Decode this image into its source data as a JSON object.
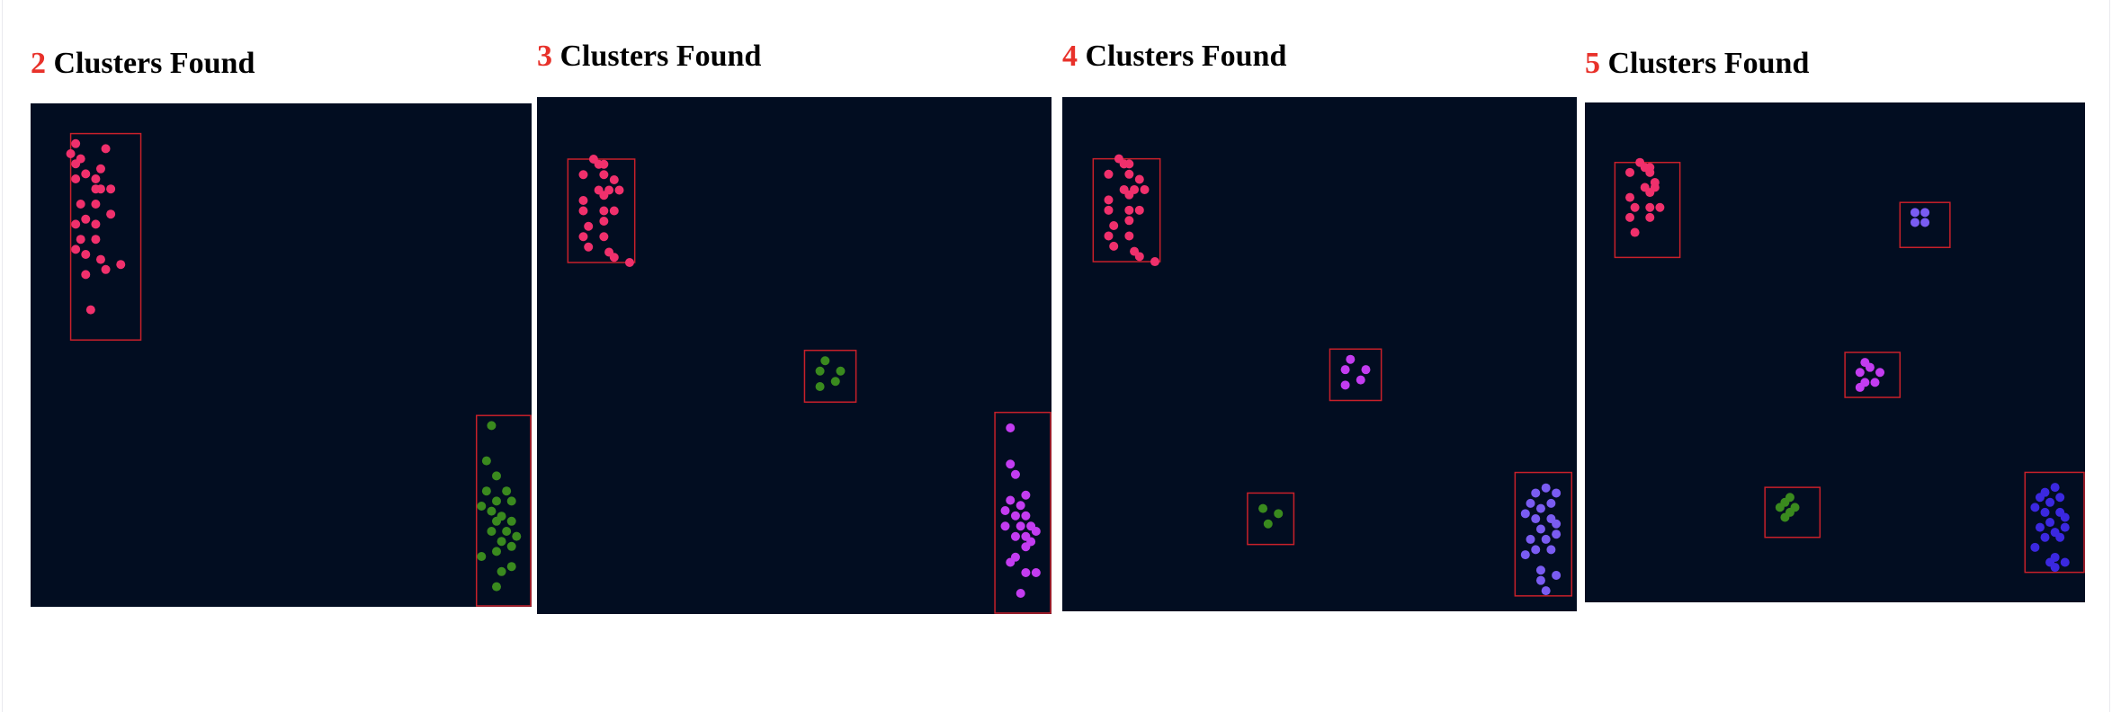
{
  "colors": {
    "background": "#020d21",
    "box": "#c8202a",
    "count_text": "#e8312a"
  },
  "chart_data": [
    {
      "type": "scatter",
      "count": "2",
      "title_suffix": "Clusters Found",
      "xlim": [
        0,
        1
      ],
      "ylim": [
        0,
        1
      ],
      "clusters": [
        {
          "color": "#f0306c",
          "box": [
            0.08,
            0.53,
            0.22,
            0.94
          ],
          "points": [
            [
              0.09,
              0.92
            ],
            [
              0.08,
              0.9
            ],
            [
              0.1,
              0.89
            ],
            [
              0.09,
              0.88
            ],
            [
              0.15,
              0.91
            ],
            [
              0.11,
              0.86
            ],
            [
              0.14,
              0.87
            ],
            [
              0.13,
              0.85
            ],
            [
              0.16,
              0.83
            ],
            [
              0.09,
              0.85
            ],
            [
              0.13,
              0.83
            ],
            [
              0.14,
              0.83
            ],
            [
              0.13,
              0.8
            ],
            [
              0.1,
              0.8
            ],
            [
              0.16,
              0.78
            ],
            [
              0.11,
              0.77
            ],
            [
              0.13,
              0.76
            ],
            [
              0.09,
              0.76
            ],
            [
              0.1,
              0.73
            ],
            [
              0.13,
              0.73
            ],
            [
              0.09,
              0.71
            ],
            [
              0.14,
              0.69
            ],
            [
              0.11,
              0.7
            ],
            [
              0.18,
              0.68
            ],
            [
              0.15,
              0.67
            ],
            [
              0.11,
              0.66
            ],
            [
              0.12,
              0.59
            ]
          ]
        },
        {
          "color": "#3a8a1e",
          "box": [
            0.89,
            0.0,
            1.0,
            0.38
          ],
          "points": [
            [
              0.92,
              0.36
            ],
            [
              0.91,
              0.29
            ],
            [
              0.93,
              0.26
            ],
            [
              0.95,
              0.23
            ],
            [
              0.91,
              0.23
            ],
            [
              0.93,
              0.21
            ],
            [
              0.96,
              0.21
            ],
            [
              0.9,
              0.2
            ],
            [
              0.92,
              0.19
            ],
            [
              0.94,
              0.18
            ],
            [
              0.96,
              0.17
            ],
            [
              0.93,
              0.17
            ],
            [
              0.95,
              0.15
            ],
            [
              0.97,
              0.14
            ],
            [
              0.92,
              0.15
            ],
            [
              0.94,
              0.13
            ],
            [
              0.96,
              0.12
            ],
            [
              0.9,
              0.1
            ],
            [
              0.93,
              0.11
            ],
            [
              0.96,
              0.08
            ],
            [
              0.94,
              0.07
            ],
            [
              0.93,
              0.04
            ]
          ]
        }
      ]
    },
    {
      "type": "scatter",
      "count": "3",
      "title_suffix": "Clusters Found",
      "xlim": [
        0,
        1
      ],
      "ylim": [
        0,
        1
      ],
      "clusters": [
        {
          "color": "#f0306c",
          "box": [
            0.06,
            0.68,
            0.19,
            0.88
          ],
          "points": [
            [
              0.11,
              0.88
            ],
            [
              0.12,
              0.87
            ],
            [
              0.13,
              0.87
            ],
            [
              0.09,
              0.85
            ],
            [
              0.13,
              0.85
            ],
            [
              0.15,
              0.84
            ],
            [
              0.12,
              0.82
            ],
            [
              0.14,
              0.82
            ],
            [
              0.16,
              0.82
            ],
            [
              0.13,
              0.81
            ],
            [
              0.09,
              0.8
            ],
            [
              0.09,
              0.78
            ],
            [
              0.13,
              0.78
            ],
            [
              0.15,
              0.78
            ],
            [
              0.13,
              0.76
            ],
            [
              0.1,
              0.75
            ],
            [
              0.09,
              0.73
            ],
            [
              0.13,
              0.73
            ],
            [
              0.1,
              0.71
            ],
            [
              0.14,
              0.7
            ],
            [
              0.15,
              0.69
            ],
            [
              0.18,
              0.68
            ]
          ]
        },
        {
          "color": "#3a8a1e",
          "box": [
            0.52,
            0.41,
            0.62,
            0.51
          ],
          "points": [
            [
              0.56,
              0.49
            ],
            [
              0.59,
              0.47
            ],
            [
              0.55,
              0.47
            ],
            [
              0.58,
              0.45
            ],
            [
              0.55,
              0.44
            ]
          ]
        },
        {
          "color": "#c33cf0",
          "box": [
            0.89,
            0.0,
            1.0,
            0.39
          ],
          "points": [
            [
              0.92,
              0.36
            ],
            [
              0.92,
              0.29
            ],
            [
              0.93,
              0.27
            ],
            [
              0.95,
              0.23
            ],
            [
              0.92,
              0.22
            ],
            [
              0.94,
              0.21
            ],
            [
              0.91,
              0.2
            ],
            [
              0.93,
              0.19
            ],
            [
              0.95,
              0.19
            ],
            [
              0.94,
              0.17
            ],
            [
              0.96,
              0.17
            ],
            [
              0.91,
              0.17
            ],
            [
              0.95,
              0.15
            ],
            [
              0.97,
              0.16
            ],
            [
              0.93,
              0.15
            ],
            [
              0.95,
              0.13
            ],
            [
              0.96,
              0.14
            ],
            [
              0.93,
              0.11
            ],
            [
              0.92,
              0.1
            ],
            [
              0.95,
              0.08
            ],
            [
              0.97,
              0.08
            ],
            [
              0.94,
              0.04
            ]
          ]
        }
      ]
    },
    {
      "type": "scatter",
      "count": "4",
      "title_suffix": "Clusters Found",
      "xlim": [
        0,
        1
      ],
      "ylim": [
        0,
        1
      ],
      "clusters": [
        {
          "color": "#f0306c",
          "box": [
            0.06,
            0.68,
            0.19,
            0.88
          ],
          "points": [
            [
              0.11,
              0.88
            ],
            [
              0.12,
              0.87
            ],
            [
              0.13,
              0.87
            ],
            [
              0.09,
              0.85
            ],
            [
              0.13,
              0.85
            ],
            [
              0.15,
              0.84
            ],
            [
              0.12,
              0.82
            ],
            [
              0.14,
              0.82
            ],
            [
              0.16,
              0.82
            ],
            [
              0.13,
              0.81
            ],
            [
              0.09,
              0.8
            ],
            [
              0.09,
              0.78
            ],
            [
              0.13,
              0.78
            ],
            [
              0.15,
              0.78
            ],
            [
              0.13,
              0.76
            ],
            [
              0.1,
              0.75
            ],
            [
              0.09,
              0.73
            ],
            [
              0.13,
              0.73
            ],
            [
              0.1,
              0.71
            ],
            [
              0.14,
              0.7
            ],
            [
              0.15,
              0.69
            ],
            [
              0.18,
              0.68
            ]
          ]
        },
        {
          "color": "#c33cf0",
          "box": [
            0.52,
            0.41,
            0.62,
            0.51
          ],
          "points": [
            [
              0.56,
              0.49
            ],
            [
              0.59,
              0.47
            ],
            [
              0.55,
              0.47
            ],
            [
              0.58,
              0.45
            ],
            [
              0.55,
              0.44
            ]
          ]
        },
        {
          "color": "#3a8a1e",
          "box": [
            0.36,
            0.13,
            0.45,
            0.23
          ],
          "points": [
            [
              0.39,
              0.2
            ],
            [
              0.42,
              0.19
            ],
            [
              0.4,
              0.17
            ]
          ]
        },
        {
          "color": "#7a5cf2",
          "box": [
            0.88,
            0.03,
            0.99,
            0.27
          ],
          "points": [
            [
              0.92,
              0.23
            ],
            [
              0.94,
              0.24
            ],
            [
              0.96,
              0.23
            ],
            [
              0.91,
              0.21
            ],
            [
              0.93,
              0.2
            ],
            [
              0.95,
              0.21
            ],
            [
              0.9,
              0.19
            ],
            [
              0.92,
              0.18
            ],
            [
              0.95,
              0.18
            ],
            [
              0.96,
              0.17
            ],
            [
              0.93,
              0.16
            ],
            [
              0.96,
              0.15
            ],
            [
              0.94,
              0.14
            ],
            [
              0.91,
              0.14
            ],
            [
              0.92,
              0.12
            ],
            [
              0.95,
              0.12
            ],
            [
              0.9,
              0.11
            ],
            [
              0.93,
              0.08
            ],
            [
              0.96,
              0.07
            ],
            [
              0.93,
              0.06
            ],
            [
              0.94,
              0.04
            ]
          ]
        }
      ]
    },
    {
      "type": "scatter",
      "count": "5",
      "title_suffix": "Clusters Found",
      "xlim": [
        0,
        1
      ],
      "ylim": [
        0,
        1
      ],
      "clusters": [
        {
          "color": "#f0306c",
          "box": [
            0.06,
            0.69,
            0.19,
            0.88
          ],
          "points": [
            [
              0.11,
              0.88
            ],
            [
              0.12,
              0.87
            ],
            [
              0.13,
              0.87
            ],
            [
              0.09,
              0.86
            ],
            [
              0.13,
              0.86
            ],
            [
              0.14,
              0.84
            ],
            [
              0.12,
              0.83
            ],
            [
              0.14,
              0.83
            ],
            [
              0.13,
              0.82
            ],
            [
              0.09,
              0.81
            ],
            [
              0.1,
              0.79
            ],
            [
              0.13,
              0.79
            ],
            [
              0.15,
              0.79
            ],
            [
              0.13,
              0.77
            ],
            [
              0.09,
              0.77
            ],
            [
              0.1,
              0.74
            ]
          ]
        },
        {
          "color": "#7a5cf2",
          "box": [
            0.63,
            0.71,
            0.73,
            0.8
          ],
          "points": [
            [
              0.66,
              0.78
            ],
            [
              0.68,
              0.78
            ],
            [
              0.66,
              0.76
            ],
            [
              0.68,
              0.76
            ]
          ]
        },
        {
          "color": "#c33cf0",
          "box": [
            0.52,
            0.41,
            0.63,
            0.5
          ],
          "points": [
            [
              0.56,
              0.48
            ],
            [
              0.57,
              0.47
            ],
            [
              0.59,
              0.46
            ],
            [
              0.55,
              0.46
            ],
            [
              0.56,
              0.44
            ],
            [
              0.58,
              0.44
            ],
            [
              0.55,
              0.43
            ]
          ]
        },
        {
          "color": "#3a8a1e",
          "box": [
            0.36,
            0.13,
            0.47,
            0.23
          ],
          "points": [
            [
              0.4,
              0.2
            ],
            [
              0.41,
              0.21
            ],
            [
              0.39,
              0.19
            ],
            [
              0.42,
              0.19
            ],
            [
              0.41,
              0.18
            ],
            [
              0.4,
              0.17
            ]
          ]
        },
        {
          "color": "#3b28e0",
          "box": [
            0.88,
            0.06,
            1.0,
            0.26
          ],
          "points": [
            [
              0.92,
              0.22
            ],
            [
              0.94,
              0.23
            ],
            [
              0.91,
              0.21
            ],
            [
              0.93,
              0.2
            ],
            [
              0.95,
              0.21
            ],
            [
              0.9,
              0.19
            ],
            [
              0.92,
              0.18
            ],
            [
              0.95,
              0.18
            ],
            [
              0.96,
              0.17
            ],
            [
              0.93,
              0.16
            ],
            [
              0.96,
              0.15
            ],
            [
              0.94,
              0.14
            ],
            [
              0.91,
              0.15
            ],
            [
              0.92,
              0.13
            ],
            [
              0.95,
              0.13
            ],
            [
              0.9,
              0.11
            ],
            [
              0.94,
              0.09
            ],
            [
              0.96,
              0.08
            ],
            [
              0.93,
              0.08
            ],
            [
              0.94,
              0.07
            ]
          ]
        }
      ]
    }
  ]
}
